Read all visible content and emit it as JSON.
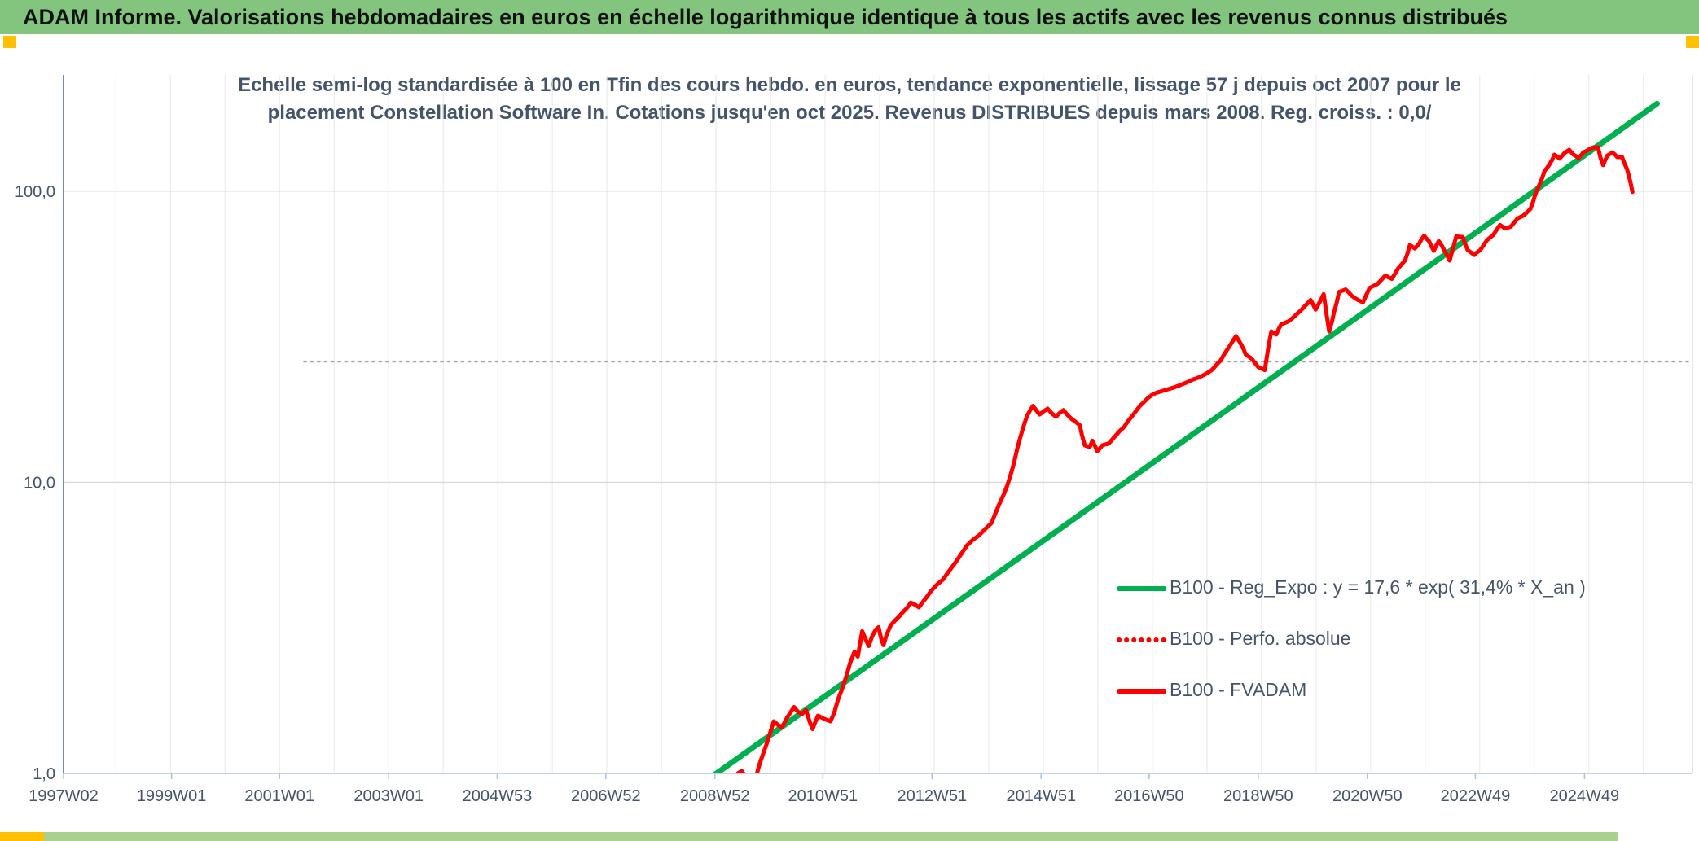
{
  "header": {
    "title": "ADAM Informe. Valorisations hebdomadaires en euros en échelle logarithmique identique à tous les actifs avec les revenus connus distribués"
  },
  "colors": {
    "header_bg": "#83C57E",
    "accent_orange": "#FFC000",
    "title_text": "#44546A",
    "axis_text": "#44546A",
    "grid_minor": "#E8E8E8",
    "grid_major": "#D9D9D9",
    "y_axis_line": "#4472C4",
    "x_axis_line": "#AFC3DC",
    "green_line": "#00B050",
    "red_line": "#FF0000",
    "dotted_ref": "#A6A6A6",
    "bottom_bar_green": "#A9D18E"
  },
  "chart_data": {
    "type": "line",
    "y_scale": "log",
    "title_lines": [
      "Echelle semi-log standardisée à 100 en Tfin des cours hebdo. en euros, tendance exponentielle, lissage 57 j depuis oct 2007 pour le",
      "placement Constellation Software In. Cotations jusqu'en oct 2025. Revenus DISTRIBUES depuis mars 2008. Reg. croiss. : 0,0/"
    ],
    "x_domain": [
      1997.04,
      2026.9
    ],
    "y_domain": [
      1,
      251
    ],
    "x_tick_labels": [
      "1997W02",
      "1999W01",
      "2001W01",
      "2003W01",
      "2004W53",
      "2006W52",
      "2008W52",
      "2010W51",
      "2012W51",
      "2014W51",
      "2016W50",
      "2018W50",
      "2020W50",
      "2022W49",
      "2024W49"
    ],
    "x_tick_years": [
      1997.04,
      1999.02,
      2001.0,
      2003.0,
      2004.99,
      2006.98,
      2008.98,
      2010.96,
      2012.96,
      2014.96,
      2016.94,
      2018.94,
      2020.94,
      2022.92,
      2024.92
    ],
    "y_ticks": [
      {
        "label": "1,0",
        "value": 1
      },
      {
        "label": "10,0",
        "value": 10
      },
      {
        "label": "100,0",
        "value": 100
      }
    ],
    "grid": {
      "vertical_every_years": 1,
      "horizontal_at": [
        10,
        100
      ]
    },
    "dotted_reference_line": {
      "value": 26,
      "from_year": 2001.45,
      "to_year": 2026.9
    },
    "legend": {
      "position": "inside-right-lower",
      "entries": [
        {
          "label": "B100 - Reg_Expo : y = 17,6 * exp( 31,4% *  X_an )",
          "color": "#00B050",
          "style": "solid"
        },
        {
          "label": "B100 - Perfo. absolue",
          "color": "#FF0000",
          "style": "dotted"
        },
        {
          "label": "B100 - FVADAM",
          "color": "#FF0000",
          "style": "solid"
        }
      ]
    },
    "series": [
      {
        "name": "B100 - Reg_Expo : y = 17,6 * exp( 31,4% *  X_an )",
        "color": "#00B050",
        "style": "solid",
        "width": 7,
        "points": [
          [
            2008.2,
            0.78
          ],
          [
            2026.25,
            200
          ]
        ]
      },
      {
        "name": "B100 - Perfo. absolue",
        "color": "#FF0000",
        "style": "dotted",
        "width": 5,
        "same_as": "B100 - FVADAM"
      },
      {
        "name": "B100 - FVADAM",
        "color": "#FF0000",
        "style": "solid",
        "width": 5,
        "points": [
          [
            2009.3,
            0.9
          ],
          [
            2009.4,
            1.0
          ],
          [
            2009.47,
            1.02
          ],
          [
            2009.55,
            0.97
          ],
          [
            2009.65,
            0.94
          ],
          [
            2009.74,
            0.98
          ],
          [
            2009.8,
            1.08
          ],
          [
            2009.92,
            1.25
          ],
          [
            2010.06,
            1.51
          ],
          [
            2010.15,
            1.46
          ],
          [
            2010.21,
            1.44
          ],
          [
            2010.3,
            1.55
          ],
          [
            2010.43,
            1.69
          ],
          [
            2010.5,
            1.63
          ],
          [
            2010.58,
            1.6
          ],
          [
            2010.65,
            1.65
          ],
          [
            2010.72,
            1.5
          ],
          [
            2010.77,
            1.42
          ],
          [
            2010.82,
            1.5
          ],
          [
            2010.87,
            1.58
          ],
          [
            2010.95,
            1.55
          ],
          [
            2011.02,
            1.53
          ],
          [
            2011.1,
            1.51
          ],
          [
            2011.17,
            1.62
          ],
          [
            2011.24,
            1.8
          ],
          [
            2011.32,
            1.97
          ],
          [
            2011.39,
            2.16
          ],
          [
            2011.46,
            2.4
          ],
          [
            2011.54,
            2.62
          ],
          [
            2011.6,
            2.52
          ],
          [
            2011.68,
            3.08
          ],
          [
            2011.74,
            2.9
          ],
          [
            2011.8,
            2.74
          ],
          [
            2011.86,
            2.95
          ],
          [
            2011.93,
            3.12
          ],
          [
            2011.98,
            3.18
          ],
          [
            2012.03,
            2.9
          ],
          [
            2012.07,
            2.76
          ],
          [
            2012.13,
            3.0
          ],
          [
            2012.2,
            3.22
          ],
          [
            2012.28,
            3.35
          ],
          [
            2012.35,
            3.45
          ],
          [
            2012.42,
            3.57
          ],
          [
            2012.5,
            3.7
          ],
          [
            2012.57,
            3.86
          ],
          [
            2012.65,
            3.8
          ],
          [
            2012.72,
            3.72
          ],
          [
            2012.8,
            3.9
          ],
          [
            2012.87,
            4.05
          ],
          [
            2012.94,
            4.23
          ],
          [
            2013.05,
            4.45
          ],
          [
            2013.16,
            4.63
          ],
          [
            2013.27,
            4.95
          ],
          [
            2013.38,
            5.27
          ],
          [
            2013.49,
            5.65
          ],
          [
            2013.6,
            6.07
          ],
          [
            2013.71,
            6.35
          ],
          [
            2013.82,
            6.57
          ],
          [
            2013.93,
            6.9
          ],
          [
            2014.05,
            7.24
          ],
          [
            2014.12,
            7.8
          ],
          [
            2014.19,
            8.4
          ],
          [
            2014.27,
            9.05
          ],
          [
            2014.34,
            9.75
          ],
          [
            2014.4,
            10.6
          ],
          [
            2014.46,
            11.6
          ],
          [
            2014.52,
            13.0
          ],
          [
            2014.58,
            14.3
          ],
          [
            2014.64,
            15.6
          ],
          [
            2014.7,
            16.9
          ],
          [
            2014.76,
            17.7
          ],
          [
            2014.81,
            18.3
          ],
          [
            2014.87,
            17.7
          ],
          [
            2014.93,
            17.1
          ],
          [
            2015.0,
            17.5
          ],
          [
            2015.08,
            17.9
          ],
          [
            2015.15,
            17.3
          ],
          [
            2015.23,
            16.8
          ],
          [
            2015.3,
            17.3
          ],
          [
            2015.37,
            17.7
          ],
          [
            2015.45,
            17.0
          ],
          [
            2015.52,
            16.5
          ],
          [
            2015.6,
            16.1
          ],
          [
            2015.67,
            15.7
          ],
          [
            2015.71,
            14.5
          ],
          [
            2015.76,
            13.4
          ],
          [
            2015.81,
            13.3
          ],
          [
            2015.85,
            13.2
          ],
          [
            2015.9,
            13.9
          ],
          [
            2015.95,
            13.3
          ],
          [
            2015.99,
            12.8
          ],
          [
            2016.04,
            13.1
          ],
          [
            2016.08,
            13.4
          ],
          [
            2016.14,
            13.5
          ],
          [
            2016.2,
            13.6
          ],
          [
            2016.26,
            14.0
          ],
          [
            2016.33,
            14.5
          ],
          [
            2016.4,
            15.0
          ],
          [
            2016.48,
            15.5
          ],
          [
            2016.55,
            16.2
          ],
          [
            2016.63,
            16.9
          ],
          [
            2016.7,
            17.6
          ],
          [
            2016.77,
            18.3
          ],
          [
            2016.85,
            18.9
          ],
          [
            2016.92,
            19.5
          ],
          [
            2017.0,
            20.0
          ],
          [
            2017.07,
            20.3
          ],
          [
            2017.18,
            20.6
          ],
          [
            2017.29,
            20.9
          ],
          [
            2017.4,
            21.2
          ],
          [
            2017.51,
            21.6
          ],
          [
            2017.62,
            22.0
          ],
          [
            2017.73,
            22.5
          ],
          [
            2017.84,
            22.9
          ],
          [
            2017.95,
            23.4
          ],
          [
            2018.03,
            23.9
          ],
          [
            2018.1,
            24.4
          ],
          [
            2018.17,
            25.3
          ],
          [
            2018.25,
            26.2
          ],
          [
            2018.32,
            27.6
          ],
          [
            2018.4,
            29.1
          ],
          [
            2018.47,
            30.5
          ],
          [
            2018.53,
            31.8
          ],
          [
            2018.58,
            30.8
          ],
          [
            2018.62,
            29.9
          ],
          [
            2018.67,
            28.7
          ],
          [
            2018.71,
            27.5
          ],
          [
            2018.77,
            27.0
          ],
          [
            2018.82,
            26.6
          ],
          [
            2018.88,
            25.7
          ],
          [
            2018.94,
            24.9
          ],
          [
            2019.0,
            24.6
          ],
          [
            2019.06,
            24.3
          ],
          [
            2019.09,
            26.4
          ],
          [
            2019.12,
            28.7
          ],
          [
            2019.15,
            30.8
          ],
          [
            2019.18,
            33.0
          ],
          [
            2019.22,
            32.6
          ],
          [
            2019.27,
            32.2
          ],
          [
            2019.31,
            33.5
          ],
          [
            2019.36,
            34.9
          ],
          [
            2019.43,
            35.3
          ],
          [
            2019.5,
            35.8
          ],
          [
            2019.58,
            36.8
          ],
          [
            2019.65,
            37.9
          ],
          [
            2019.73,
            39.1
          ],
          [
            2019.8,
            40.4
          ],
          [
            2019.85,
            41.3
          ],
          [
            2019.9,
            42.3
          ],
          [
            2019.95,
            40.7
          ],
          [
            2019.99,
            39.2
          ],
          [
            2020.07,
            41.7
          ],
          [
            2020.14,
            44.3
          ],
          [
            2020.19,
            38.0
          ],
          [
            2020.24,
            33.0
          ],
          [
            2020.29,
            35.6
          ],
          [
            2020.33,
            38.4
          ],
          [
            2020.38,
            41.6
          ],
          [
            2020.42,
            45.1
          ],
          [
            2020.48,
            45.5
          ],
          [
            2020.54,
            46.0
          ],
          [
            2020.6,
            44.9
          ],
          [
            2020.65,
            43.8
          ],
          [
            2020.71,
            43.0
          ],
          [
            2020.77,
            42.3
          ],
          [
            2020.82,
            41.9
          ],
          [
            2020.86,
            41.5
          ],
          [
            2020.92,
            44.0
          ],
          [
            2020.98,
            46.5
          ],
          [
            2021.05,
            47.3
          ],
          [
            2021.13,
            48.1
          ],
          [
            2021.2,
            49.7
          ],
          [
            2021.27,
            51.3
          ],
          [
            2021.33,
            50.6
          ],
          [
            2021.39,
            50.0
          ],
          [
            2021.45,
            52.2
          ],
          [
            2021.51,
            54.5
          ],
          [
            2021.57,
            56.1
          ],
          [
            2021.63,
            57.8
          ],
          [
            2021.68,
            61.5
          ],
          [
            2021.72,
            65.3
          ],
          [
            2021.77,
            64.4
          ],
          [
            2021.81,
            63.6
          ],
          [
            2021.85,
            64.8
          ],
          [
            2021.89,
            66.1
          ],
          [
            2021.93,
            68.2
          ],
          [
            2021.98,
            70.4
          ],
          [
            2022.02,
            68.9
          ],
          [
            2022.07,
            67.4
          ],
          [
            2022.11,
            64.9
          ],
          [
            2022.16,
            62.4
          ],
          [
            2022.2,
            64.9
          ],
          [
            2022.25,
            67.4
          ],
          [
            2022.3,
            65.3
          ],
          [
            2022.34,
            63.2
          ],
          [
            2022.4,
            60.4
          ],
          [
            2022.45,
            57.8
          ],
          [
            2022.51,
            63.7
          ],
          [
            2022.57,
            70.0
          ],
          [
            2022.63,
            69.8
          ],
          [
            2022.69,
            69.6
          ],
          [
            2022.73,
            66.1
          ],
          [
            2022.78,
            62.8
          ],
          [
            2022.84,
            61.6
          ],
          [
            2022.9,
            60.4
          ],
          [
            2022.95,
            61.6
          ],
          [
            2023.01,
            62.8
          ],
          [
            2023.07,
            65.2
          ],
          [
            2023.13,
            67.8
          ],
          [
            2023.19,
            69.3
          ],
          [
            2023.25,
            70.8
          ],
          [
            2023.31,
            73.7
          ],
          [
            2023.37,
            76.6
          ],
          [
            2023.42,
            75.5
          ],
          [
            2023.46,
            74.5
          ],
          [
            2023.52,
            75.0
          ],
          [
            2023.57,
            75.6
          ],
          [
            2023.63,
            78.0
          ],
          [
            2023.69,
            80.6
          ],
          [
            2023.75,
            81.6
          ],
          [
            2023.81,
            82.7
          ],
          [
            2023.87,
            84.8
          ],
          [
            2023.93,
            87.0
          ],
          [
            2023.98,
            92.2
          ],
          [
            2024.02,
            97.8
          ],
          [
            2024.06,
            101.8
          ],
          [
            2024.1,
            106.0
          ],
          [
            2024.15,
            111.6
          ],
          [
            2024.19,
            117.6
          ],
          [
            2024.24,
            120.6
          ],
          [
            2024.28,
            123.8
          ],
          [
            2024.33,
            128.5
          ],
          [
            2024.37,
            133.5
          ],
          [
            2024.42,
            131.4
          ],
          [
            2024.46,
            129.4
          ],
          [
            2024.51,
            132.3
          ],
          [
            2024.55,
            135.2
          ],
          [
            2024.6,
            137.0
          ],
          [
            2024.64,
            138.8
          ],
          [
            2024.68,
            136.1
          ],
          [
            2024.72,
            133.5
          ],
          [
            2024.77,
            131.8
          ],
          [
            2024.81,
            130.2
          ],
          [
            2024.86,
            133.0
          ],
          [
            2024.9,
            136.0
          ],
          [
            2024.95,
            137.4
          ],
          [
            2024.99,
            138.8
          ],
          [
            2025.04,
            140.1
          ],
          [
            2025.08,
            141.5
          ],
          [
            2025.13,
            141.5
          ],
          [
            2025.17,
            141.5
          ],
          [
            2025.21,
            131.0
          ],
          [
            2025.26,
            123.0
          ],
          [
            2025.3,
            127.8
          ],
          [
            2025.34,
            132.7
          ],
          [
            2025.39,
            134.3
          ],
          [
            2025.43,
            136.0
          ],
          [
            2025.48,
            133.5
          ],
          [
            2025.52,
            131.0
          ],
          [
            2025.57,
            131.0
          ],
          [
            2025.61,
            131.0
          ],
          [
            2025.65,
            125.0
          ],
          [
            2025.7,
            119.2
          ],
          [
            2025.73,
            113.5
          ],
          [
            2025.76,
            108.1
          ],
          [
            2025.8,
            99.4
          ]
        ]
      }
    ]
  }
}
